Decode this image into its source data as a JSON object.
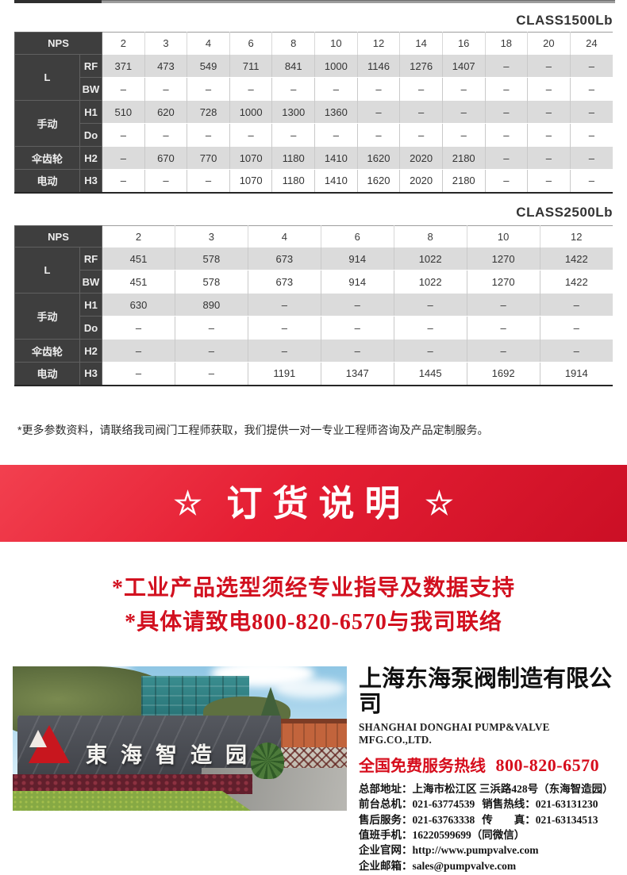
{
  "tables": [
    {
      "title": "CLASS1500Lb",
      "nps_label": "NPS",
      "columns": [
        "2",
        "3",
        "4",
        "6",
        "8",
        "10",
        "12",
        "14",
        "16",
        "18",
        "20",
        "24"
      ],
      "row_groups": [
        {
          "label": "L",
          "rows": [
            {
              "sub": "RF",
              "values": [
                "371",
                "473",
                "549",
                "711",
                "841",
                "1000",
                "1146",
                "1276",
                "1407",
                "–",
                "–",
                "–"
              ]
            },
            {
              "sub": "BW",
              "values": [
                "–",
                "–",
                "–",
                "–",
                "–",
                "–",
                "–",
                "–",
                "–",
                "–",
                "–",
                "–"
              ]
            }
          ]
        },
        {
          "label": "手动",
          "rows": [
            {
              "sub": "H1",
              "values": [
                "510",
                "620",
                "728",
                "1000",
                "1300",
                "1360",
                "–",
                "–",
                "–",
                "–",
                "–",
                "–"
              ]
            },
            {
              "sub": "Do",
              "values": [
                "–",
                "–",
                "–",
                "–",
                "–",
                "–",
                "–",
                "–",
                "–",
                "–",
                "–",
                "–"
              ]
            }
          ]
        },
        {
          "label": "伞齿轮",
          "rows": [
            {
              "sub": "H2",
              "values": [
                "–",
                "670",
                "770",
                "1070",
                "1180",
                "1410",
                "1620",
                "2020",
                "2180",
                "–",
                "–",
                "–"
              ]
            }
          ]
        },
        {
          "label": "电动",
          "rows": [
            {
              "sub": "H3",
              "values": [
                "–",
                "–",
                "–",
                "1070",
                "1180",
                "1410",
                "1620",
                "2020",
                "2180",
                "–",
                "–",
                "–"
              ]
            }
          ]
        }
      ]
    },
    {
      "title": "CLASS2500Lb",
      "nps_label": "NPS",
      "columns": [
        "2",
        "3",
        "4",
        "6",
        "8",
        "10",
        "12"
      ],
      "row_groups": [
        {
          "label": "L",
          "rows": [
            {
              "sub": "RF",
              "values": [
                "451",
                "578",
                "673",
                "914",
                "1022",
                "1270",
                "1422"
              ]
            },
            {
              "sub": "BW",
              "values": [
                "451",
                "578",
                "673",
                "914",
                "1022",
                "1270",
                "1422"
              ]
            }
          ]
        },
        {
          "label": "手动",
          "rows": [
            {
              "sub": "H1",
              "values": [
                "630",
                "890",
                "–",
                "–",
                "–",
                "–",
                "–"
              ]
            },
            {
              "sub": "Do",
              "values": [
                "–",
                "–",
                "–",
                "–",
                "–",
                "–",
                "–"
              ]
            }
          ]
        },
        {
          "label": "伞齿轮",
          "rows": [
            {
              "sub": "H2",
              "values": [
                "–",
                "–",
                "–",
                "–",
                "–",
                "–",
                "–"
              ]
            }
          ]
        },
        {
          "label": "电动",
          "rows": [
            {
              "sub": "H3",
              "values": [
                "–",
                "–",
                "1191",
                "1347",
                "1445",
                "1692",
                "1914"
              ]
            }
          ]
        }
      ]
    }
  ],
  "note": "*更多参数资料，请联络我司阀门工程师获取，我们提供一对一专业工程师咨询及产品定制服务。",
  "banner": {
    "star": "☆",
    "title": "订货说明"
  },
  "order_notes": [
    "*工业产品选型须经专业指导及数据支持",
    "*具体请致电800-820-6570与我司联络"
  ],
  "company": {
    "name_cn": "上海东海泵阀制造有限公司",
    "name_en": "SHANGHAI DONGHAI PUMP&VALVE MFG.CO.,LTD.",
    "hotline_label": "全国免费服务热线",
    "hotline_number": "800-820-6570",
    "contacts": [
      [
        {
          "label": "总部地址：",
          "value": "上海市松江区 三浜路428号（东海智造园）"
        }
      ],
      [
        {
          "label": "前台总机：",
          "value": "021-63774539"
        },
        {
          "label": "销售热线：",
          "value": "021-63131230"
        }
      ],
      [
        {
          "label": "售后服务：",
          "value": "021-63763338"
        },
        {
          "label": "传　　真：",
          "value": "021-63134513"
        }
      ],
      [
        {
          "label": "值班手机：",
          "value": "16220599699（同微信）"
        }
      ],
      [
        {
          "label": "企业官网：",
          "value": "http://www.pumpvalve.com"
        }
      ],
      [
        {
          "label": "企业邮箱：",
          "value": "sales@pumpvalve.com"
        }
      ]
    ],
    "photo": {
      "sign_text": "東海智造园"
    }
  },
  "colors": {
    "banner_red": "#e51e33",
    "accent_red": "#d2101f",
    "hotline_red": "#d60d1c",
    "table_header_dark": "#3e3e3e",
    "table_stripe_gray": "#dbdbdb"
  }
}
